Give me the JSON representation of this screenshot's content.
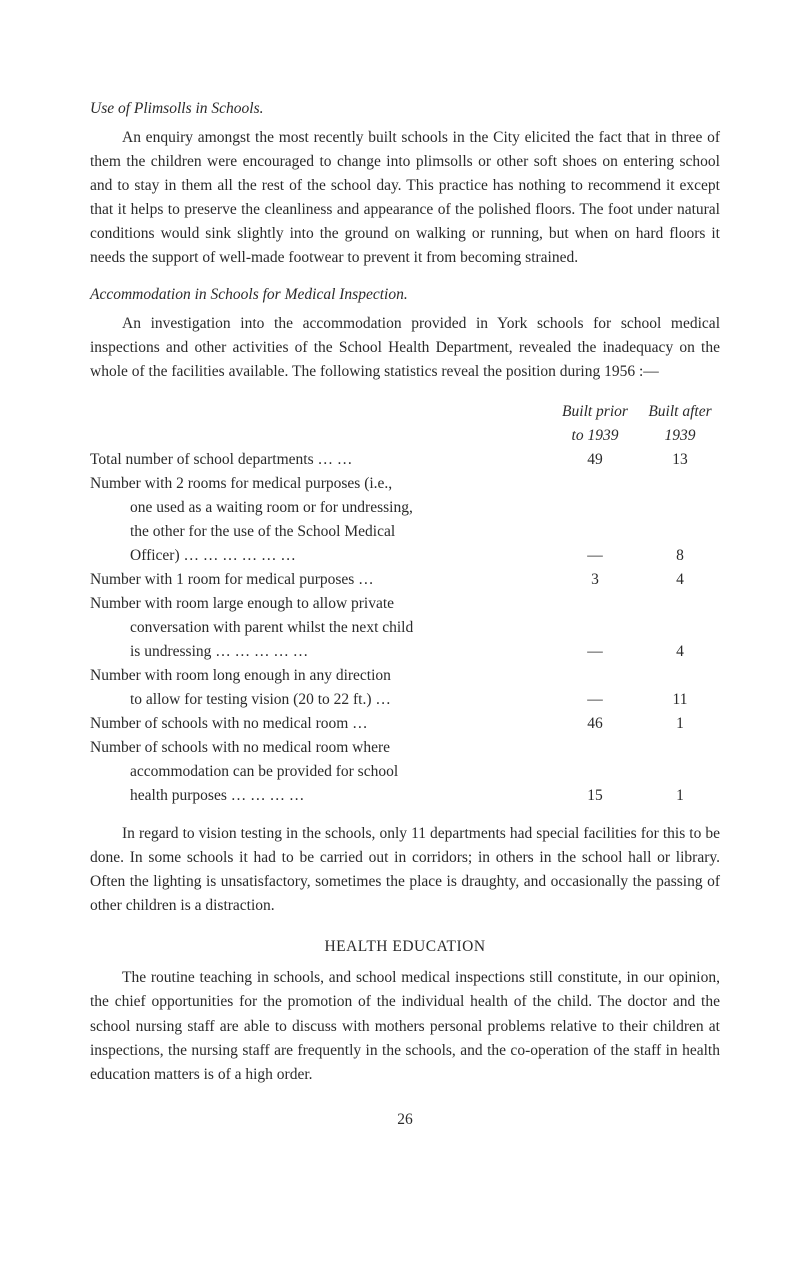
{
  "section1": {
    "title": "Use of Plimsolls in Schools.",
    "para": "An enquiry amongst the most recently built schools in the City elicited the fact that in three of them the children were encouraged to change into plimsolls or other soft shoes on entering school and to stay in them all the rest of the school day. This practice has nothing to recommend it except that it helps to preserve the cleanliness and appearance of the polished floors. The foot under natural conditions would sink slightly into the ground on walking or running, but when on hard floors it needs the support of well-made footwear to prevent it from becoming strained."
  },
  "section2": {
    "title": "Accommodation in Schools for Medical Inspection.",
    "para": "An investigation into the accommodation provided in York schools for school medical inspections and other activities of the School Health Depart­ment, revealed the inadequacy on the whole of the facilities available. The following statistics reveal the position during 1956 :—"
  },
  "table": {
    "header": {
      "prior_l1": "Built prior",
      "prior_l2": "to 1939",
      "after_l1": "Built after",
      "after_l2": "1939"
    },
    "rows": [
      {
        "desc_l1": "Total number of school departments      …     …",
        "prior": "49",
        "after": "13"
      },
      {
        "desc_l1": "Number with 2 rooms for medical purposes (i.e.,",
        "desc_l2": "one used as a waiting room or for undressing,",
        "desc_l3": "the other for the use of the School Medical",
        "desc_l4": "Officer) …      …      …      …      …      …",
        "prior": "—",
        "after": "8"
      },
      {
        "desc_l1": "Number with 1 room for medical purposes     …",
        "prior": "3",
        "after": "4"
      },
      {
        "desc_l1": "Number with room large enough to allow private",
        "desc_l2": "conversation with parent whilst the next child",
        "desc_l3": "is  undressing     …      …      …      …      …",
        "prior": "—",
        "after": "4"
      },
      {
        "desc_l1": "Number with room long enough in any direction",
        "desc_l2": "to allow for testing vision (20 to 22 ft.)     …",
        "prior": "—",
        "after": "11"
      },
      {
        "desc_l1": "Number of schools with no medical room        …",
        "prior": "46",
        "after": "1"
      },
      {
        "desc_l1": "Number of schools with no medical room where",
        "desc_l2": "accommodation can be provided for school",
        "desc_l3": "health  purposes           …      …      …      …",
        "prior": "15",
        "after": "1"
      }
    ]
  },
  "section2b": {
    "para": "In regard to vision testing in the schools, only 11 departments had special facilities for this to be done. In some schools it had to be carried out in corridors; in others in the school hall or library. Often the lighting is un­satisfactory, sometimes the place is draughty, and occasionally the passing of other children is a distraction."
  },
  "section3": {
    "title": "HEALTH EDUCATION",
    "para": "The routine teaching in schools, and school medical inspections still constitute, in our opinion, the chief opportunities for the promotion of the individual health of the child. The doctor and the school nursing staff are able to discuss with mothers personal problems relative to their children at inspections, the nursing staff are frequently in the schools, and the co-operation of the staff in health education matters is of a high order."
  },
  "page_number": "26"
}
